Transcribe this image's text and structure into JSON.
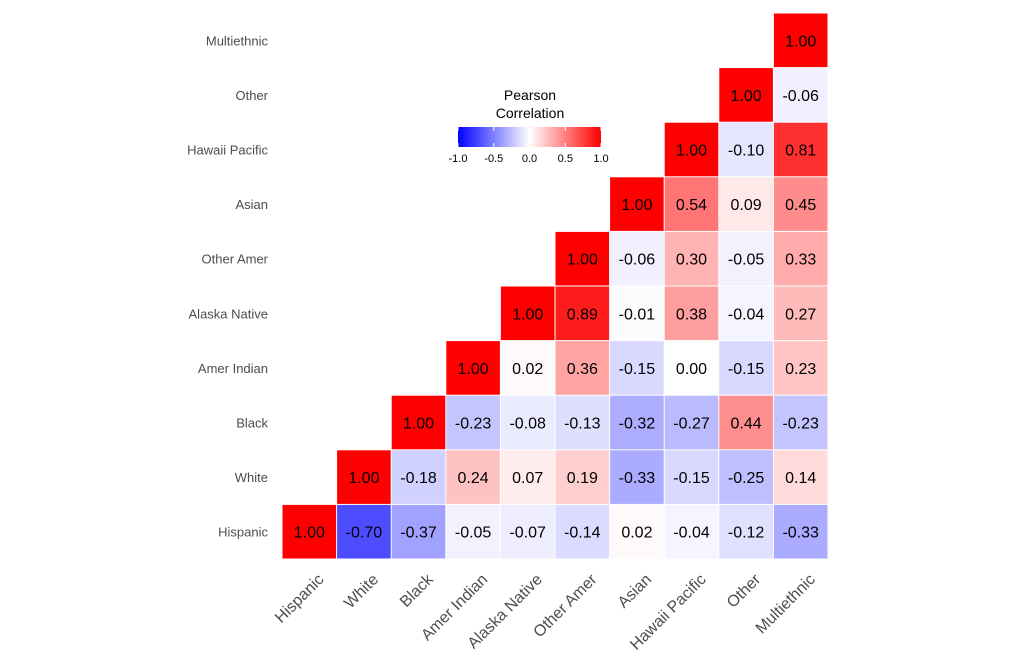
{
  "chart_data": {
    "type": "heatmap",
    "title": "",
    "variables": [
      "Hispanic",
      "White",
      "Black",
      "Amer Indian",
      "Alaska Native",
      "Other Amer",
      "Asian",
      "Hawaii Pacific",
      "Other",
      "Multiethnic"
    ],
    "cells": [
      {
        "x": "Hispanic",
        "y": "Hispanic",
        "value": 1.0,
        "label": "1.00"
      },
      {
        "x": "White",
        "y": "Hispanic",
        "value": -0.7,
        "label": "-0.70"
      },
      {
        "x": "White",
        "y": "White",
        "value": 1.0,
        "label": "1.00"
      },
      {
        "x": "Black",
        "y": "Hispanic",
        "value": -0.37,
        "label": "-0.37"
      },
      {
        "x": "Black",
        "y": "White",
        "value": -0.18,
        "label": "-0.18"
      },
      {
        "x": "Black",
        "y": "Black",
        "value": 1.0,
        "label": "1.00"
      },
      {
        "x": "Amer Indian",
        "y": "Hispanic",
        "value": -0.05,
        "label": "-0.05"
      },
      {
        "x": "Amer Indian",
        "y": "White",
        "value": 0.24,
        "label": "0.24"
      },
      {
        "x": "Amer Indian",
        "y": "Black",
        "value": -0.23,
        "label": "-0.23"
      },
      {
        "x": "Amer Indian",
        "y": "Amer Indian",
        "value": 1.0,
        "label": "1.00"
      },
      {
        "x": "Alaska Native",
        "y": "Hispanic",
        "value": -0.07,
        "label": "-0.07"
      },
      {
        "x": "Alaska Native",
        "y": "White",
        "value": 0.07,
        "label": "0.07"
      },
      {
        "x": "Alaska Native",
        "y": "Black",
        "value": -0.08,
        "label": "-0.08"
      },
      {
        "x": "Alaska Native",
        "y": "Amer Indian",
        "value": 0.02,
        "label": "0.02"
      },
      {
        "x": "Alaska Native",
        "y": "Alaska Native",
        "value": 1.0,
        "label": "1.00"
      },
      {
        "x": "Other Amer",
        "y": "Hispanic",
        "value": -0.14,
        "label": "-0.14"
      },
      {
        "x": "Other Amer",
        "y": "White",
        "value": 0.19,
        "label": "0.19"
      },
      {
        "x": "Other Amer",
        "y": "Black",
        "value": -0.13,
        "label": "-0.13"
      },
      {
        "x": "Other Amer",
        "y": "Amer Indian",
        "value": 0.36,
        "label": "0.36"
      },
      {
        "x": "Other Amer",
        "y": "Alaska Native",
        "value": 0.89,
        "label": "0.89"
      },
      {
        "x": "Other Amer",
        "y": "Other Amer",
        "value": 1.0,
        "label": "1.00"
      },
      {
        "x": "Asian",
        "y": "Hispanic",
        "value": 0.02,
        "label": "0.02"
      },
      {
        "x": "Asian",
        "y": "White",
        "value": -0.33,
        "label": "-0.33"
      },
      {
        "x": "Asian",
        "y": "Black",
        "value": -0.32,
        "label": "-0.32"
      },
      {
        "x": "Asian",
        "y": "Amer Indian",
        "value": -0.15,
        "label": "-0.15"
      },
      {
        "x": "Asian",
        "y": "Alaska Native",
        "value": -0.01,
        "label": "-0.01"
      },
      {
        "x": "Asian",
        "y": "Other Amer",
        "value": -0.06,
        "label": "-0.06"
      },
      {
        "x": "Asian",
        "y": "Asian",
        "value": 1.0,
        "label": "1.00"
      },
      {
        "x": "Hawaii Pacific",
        "y": "Hispanic",
        "value": -0.04,
        "label": "-0.04"
      },
      {
        "x": "Hawaii Pacific",
        "y": "White",
        "value": -0.15,
        "label": "-0.15"
      },
      {
        "x": "Hawaii Pacific",
        "y": "Black",
        "value": -0.27,
        "label": "-0.27"
      },
      {
        "x": "Hawaii Pacific",
        "y": "Amer Indian",
        "value": 0.0,
        "label": "0.00"
      },
      {
        "x": "Hawaii Pacific",
        "y": "Alaska Native",
        "value": 0.38,
        "label": "0.38"
      },
      {
        "x": "Hawaii Pacific",
        "y": "Other Amer",
        "value": 0.3,
        "label": "0.30"
      },
      {
        "x": "Hawaii Pacific",
        "y": "Asian",
        "value": 0.54,
        "label": "0.54"
      },
      {
        "x": "Hawaii Pacific",
        "y": "Hawaii Pacific",
        "value": 1.0,
        "label": "1.00"
      },
      {
        "x": "Other",
        "y": "Hispanic",
        "value": -0.12,
        "label": "-0.12"
      },
      {
        "x": "Other",
        "y": "White",
        "value": -0.25,
        "label": "-0.25"
      },
      {
        "x": "Other",
        "y": "Black",
        "value": 0.44,
        "label": "0.44"
      },
      {
        "x": "Other",
        "y": "Amer Indian",
        "value": -0.15,
        "label": "-0.15"
      },
      {
        "x": "Other",
        "y": "Alaska Native",
        "value": -0.04,
        "label": "-0.04"
      },
      {
        "x": "Other",
        "y": "Other Amer",
        "value": -0.05,
        "label": "-0.05"
      },
      {
        "x": "Other",
        "y": "Asian",
        "value": 0.09,
        "label": "0.09"
      },
      {
        "x": "Other",
        "y": "Hawaii Pacific",
        "value": -0.1,
        "label": "-0.10"
      },
      {
        "x": "Other",
        "y": "Other",
        "value": 1.0,
        "label": "1.00"
      },
      {
        "x": "Multiethnic",
        "y": "Hispanic",
        "value": -0.33,
        "label": "-0.33"
      },
      {
        "x": "Multiethnic",
        "y": "White",
        "value": 0.14,
        "label": "0.14"
      },
      {
        "x": "Multiethnic",
        "y": "Black",
        "value": -0.23,
        "label": "-0.23"
      },
      {
        "x": "Multiethnic",
        "y": "Amer Indian",
        "value": 0.23,
        "label": "0.23"
      },
      {
        "x": "Multiethnic",
        "y": "Alaska Native",
        "value": 0.27,
        "label": "0.27"
      },
      {
        "x": "Multiethnic",
        "y": "Other Amer",
        "value": 0.33,
        "label": "0.33"
      },
      {
        "x": "Multiethnic",
        "y": "Asian",
        "value": 0.45,
        "label": "0.45"
      },
      {
        "x": "Multiethnic",
        "y": "Hawaii Pacific",
        "value": 0.81,
        "label": "0.81"
      },
      {
        "x": "Multiethnic",
        "y": "Other",
        "value": -0.06,
        "label": "-0.06"
      },
      {
        "x": "Multiethnic",
        "y": "Multiethnic",
        "value": 1.0,
        "label": "1.00"
      }
    ],
    "color_scale": {
      "low": "#0000ff",
      "mid": "#ffffff",
      "high": "#ff0000",
      "limits": [
        -1,
        1
      ]
    },
    "legend": {
      "title_lines": [
        "Pearson",
        "Correlation"
      ],
      "ticks": [
        -1.0,
        -0.5,
        0.0,
        0.5,
        1.0
      ],
      "tick_labels": [
        "-1.0",
        "-0.5",
        "0.0",
        "0.5",
        "1.0"
      ],
      "position": "top-center"
    },
    "grid": false
  }
}
